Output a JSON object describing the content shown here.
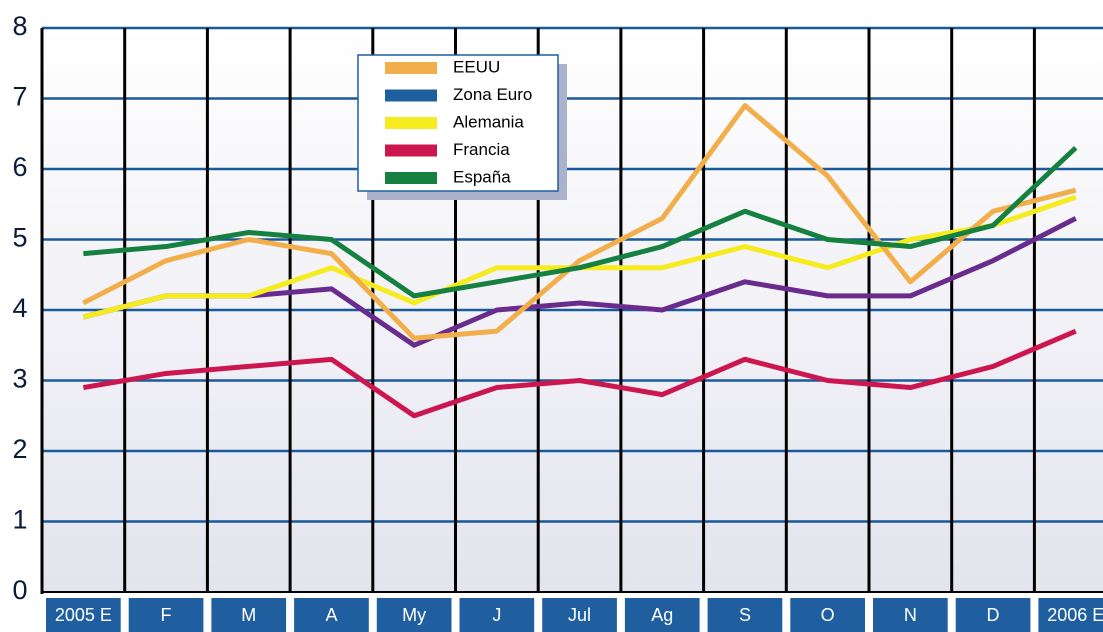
{
  "chart_data": {
    "type": "line",
    "categories": [
      "2005 E",
      "F",
      "M",
      "A",
      "My",
      "J",
      "Jul",
      "Ag",
      "S",
      "O",
      "N",
      "D",
      "2006 E"
    ],
    "series": [
      {
        "name": "EEUU",
        "color": "#f2ae4a",
        "values": [
          4.1,
          4.7,
          5.0,
          4.8,
          3.6,
          3.7,
          4.7,
          5.3,
          6.9,
          5.9,
          4.4,
          5.4,
          5.7
        ]
      },
      {
        "name": "Zona Euro",
        "color": "#1f5fa0",
        "line_color": "#6a2c8c",
        "values": [
          3.9,
          4.2,
          4.2,
          4.3,
          3.5,
          4.0,
          4.1,
          4.0,
          4.4,
          4.2,
          4.2,
          4.7,
          5.3
        ]
      },
      {
        "name": "Alemania",
        "color": "#f5eb1e",
        "values": [
          3.9,
          4.2,
          4.2,
          4.6,
          4.1,
          4.6,
          4.6,
          4.6,
          4.9,
          4.6,
          5.0,
          5.2,
          5.6
        ]
      },
      {
        "name": "Francia",
        "color": "#cc1650",
        "values": [
          2.9,
          3.1,
          3.2,
          3.3,
          2.5,
          2.9,
          3.0,
          2.8,
          3.3,
          3.0,
          2.9,
          3.2,
          3.7
        ]
      },
      {
        "name": "España",
        "color": "#158040",
        "values": [
          4.8,
          4.9,
          5.1,
          5.0,
          4.2,
          4.4,
          4.6,
          4.9,
          5.4,
          5.0,
          4.9,
          5.2,
          6.3
        ]
      }
    ],
    "ylim": [
      0,
      8
    ],
    "yticks": [
      0,
      1,
      2,
      3,
      4,
      5,
      6,
      7,
      8
    ],
    "grid": true
  }
}
